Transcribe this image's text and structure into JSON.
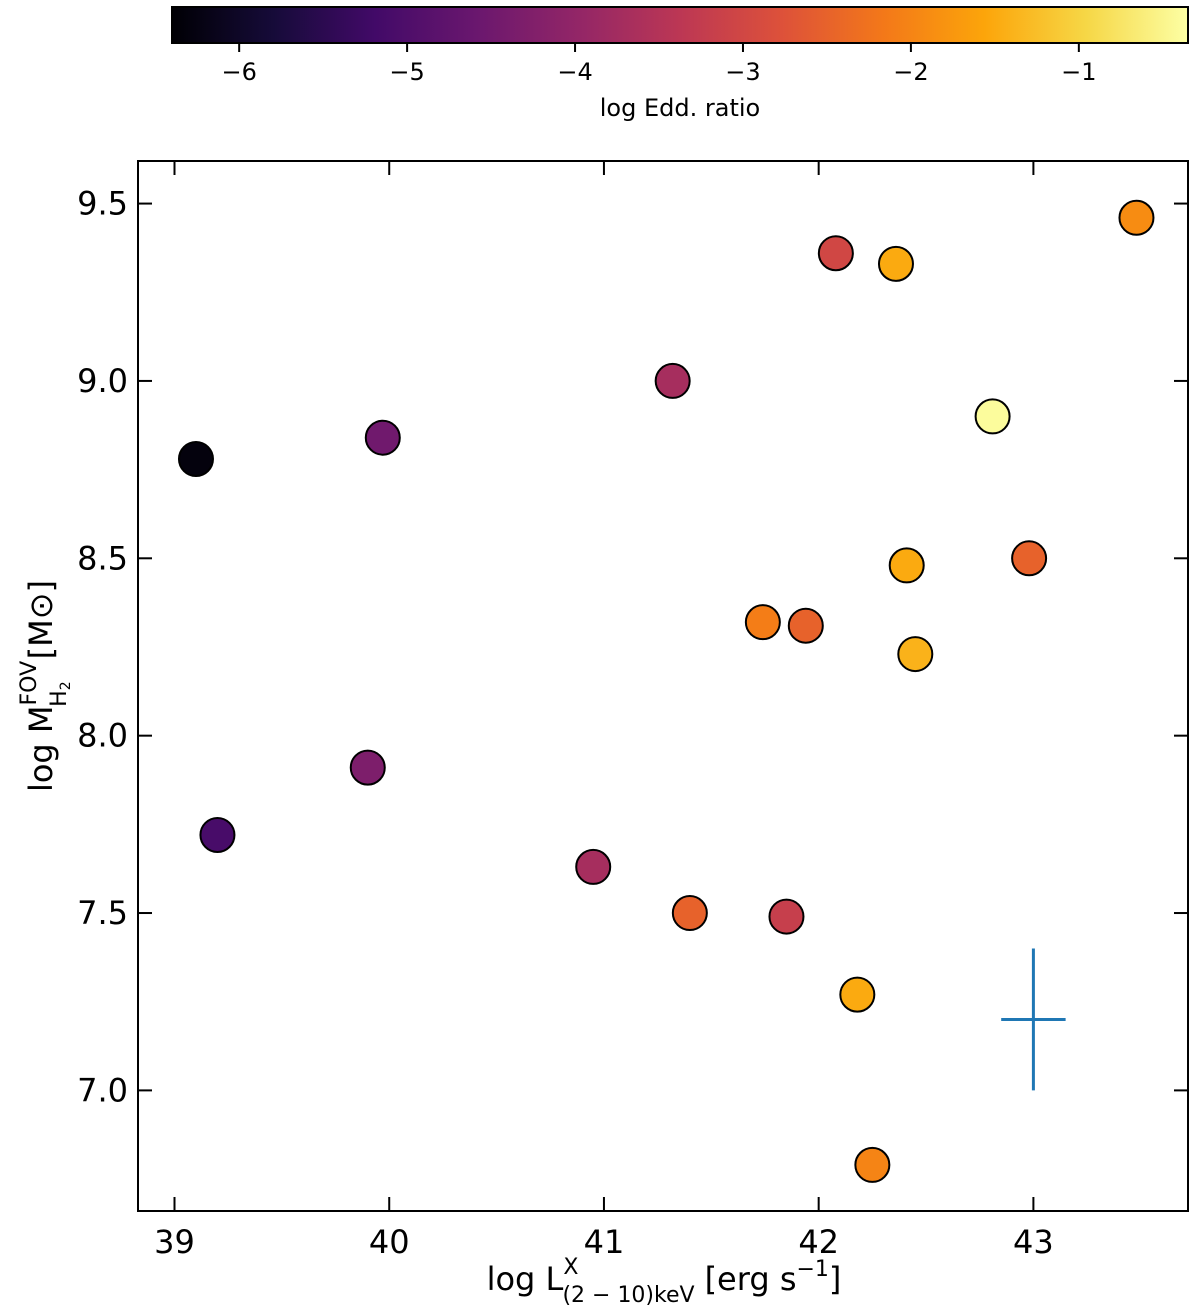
{
  "chart_data": {
    "type": "scatter",
    "xlabel": {
      "main": "log L",
      "sup": "X",
      "sub": "(2 − 10)keV",
      "unit": "[erg s",
      "unit_sup": "−1",
      "unit_end": "]"
    },
    "ylabel": {
      "main": "log M",
      "sup": "FOV",
      "sub": "H",
      "sub2": "2",
      "unit": "[M⊙]"
    },
    "xlim": [
      38.83,
      43.72
    ],
    "ylim": [
      6.66,
      9.62
    ],
    "xticks": [
      39,
      40,
      41,
      42,
      43
    ],
    "yticks": [
      7.0,
      7.5,
      8.0,
      8.5,
      9.0,
      9.5
    ],
    "xtick_labels": [
      "39",
      "40",
      "41",
      "42",
      "43"
    ],
    "ytick_labels": [
      "7.0",
      "7.5",
      "8.0",
      "8.5",
      "9.0",
      "9.5"
    ],
    "colorbar": {
      "label": "log Edd. ratio",
      "range": [
        -6.4,
        -0.35
      ],
      "ticks": [
        -6,
        -5,
        -4,
        -3,
        -2,
        -1
      ],
      "tick_labels": [
        "−6",
        "−5",
        "−4",
        "−3",
        "−2",
        "−1"
      ],
      "colormap": "inferno"
    },
    "points": [
      {
        "x": 39.1,
        "y": 8.78,
        "c": -6.3
      },
      {
        "x": 39.2,
        "y": 7.72,
        "c": -5.1
      },
      {
        "x": 39.9,
        "y": 7.91,
        "c": -4.3
      },
      {
        "x": 39.97,
        "y": 8.84,
        "c": -4.5
      },
      {
        "x": 40.95,
        "y": 7.63,
        "c": -3.7
      },
      {
        "x": 41.32,
        "y": 9.0,
        "c": -3.7
      },
      {
        "x": 41.4,
        "y": 7.5,
        "c": -2.5
      },
      {
        "x": 41.74,
        "y": 8.32,
        "c": -2.1
      },
      {
        "x": 41.85,
        "y": 7.49,
        "c": -3.2
      },
      {
        "x": 41.94,
        "y": 8.31,
        "c": -2.5
      },
      {
        "x": 42.08,
        "y": 9.36,
        "c": -3.0
      },
      {
        "x": 42.18,
        "y": 7.27,
        "c": -1.5
      },
      {
        "x": 42.25,
        "y": 6.79,
        "c": -2.0
      },
      {
        "x": 42.36,
        "y": 9.33,
        "c": -1.5
      },
      {
        "x": 42.41,
        "y": 8.48,
        "c": -1.5
      },
      {
        "x": 42.45,
        "y": 8.23,
        "c": -1.4
      },
      {
        "x": 42.81,
        "y": 8.9,
        "c": -0.4
      },
      {
        "x": 42.98,
        "y": 8.5,
        "c": -2.5
      },
      {
        "x": 43.48,
        "y": 9.46,
        "c": -1.9
      }
    ],
    "error_bar": {
      "x": 43.0,
      "y": 7.2,
      "xerr": 0.15,
      "yerr": 0.2,
      "color": "#1f77b4"
    }
  }
}
